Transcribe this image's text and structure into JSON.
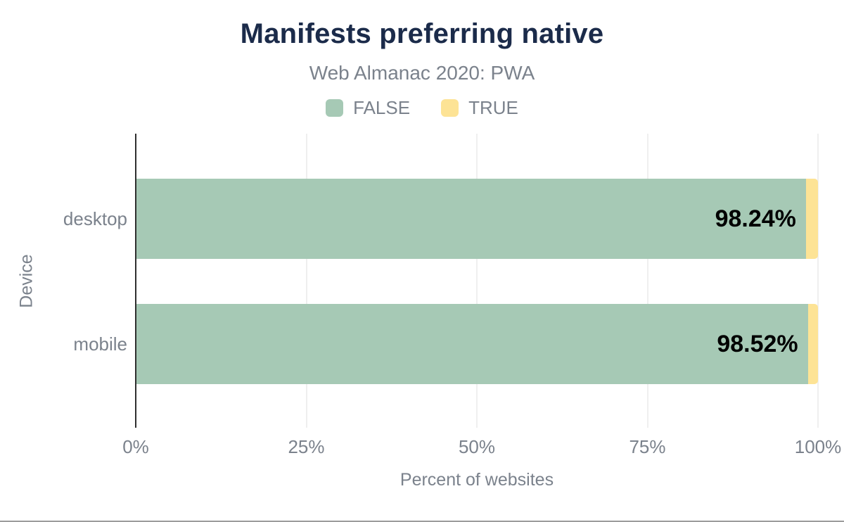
{
  "chart_data": {
    "type": "bar",
    "orientation": "horizontal",
    "stacked": true,
    "title": "Manifests preferring native",
    "subtitle": "Web Almanac 2020: PWA",
    "title_color": "#1b2b4a",
    "categories": [
      "desktop",
      "mobile"
    ],
    "series": [
      {
        "name": "FALSE",
        "color": "#a6c9b5",
        "values": [
          98.24,
          98.52
        ]
      },
      {
        "name": "TRUE",
        "color": "#fde395",
        "values": [
          1.76,
          1.48
        ]
      }
    ],
    "data_labels": [
      "98.24%",
      "98.52%"
    ],
    "xlabel": "Percent of websites",
    "ylabel": "Device",
    "xlim": [
      0,
      100
    ],
    "x_ticks": [
      {
        "value": 0,
        "label": "0%"
      },
      {
        "value": 25,
        "label": "25%"
      },
      {
        "value": 50,
        "label": "50%"
      },
      {
        "value": 75,
        "label": "75%"
      },
      {
        "value": 100,
        "label": "100%"
      }
    ],
    "grid": true,
    "legend_position": "top"
  }
}
